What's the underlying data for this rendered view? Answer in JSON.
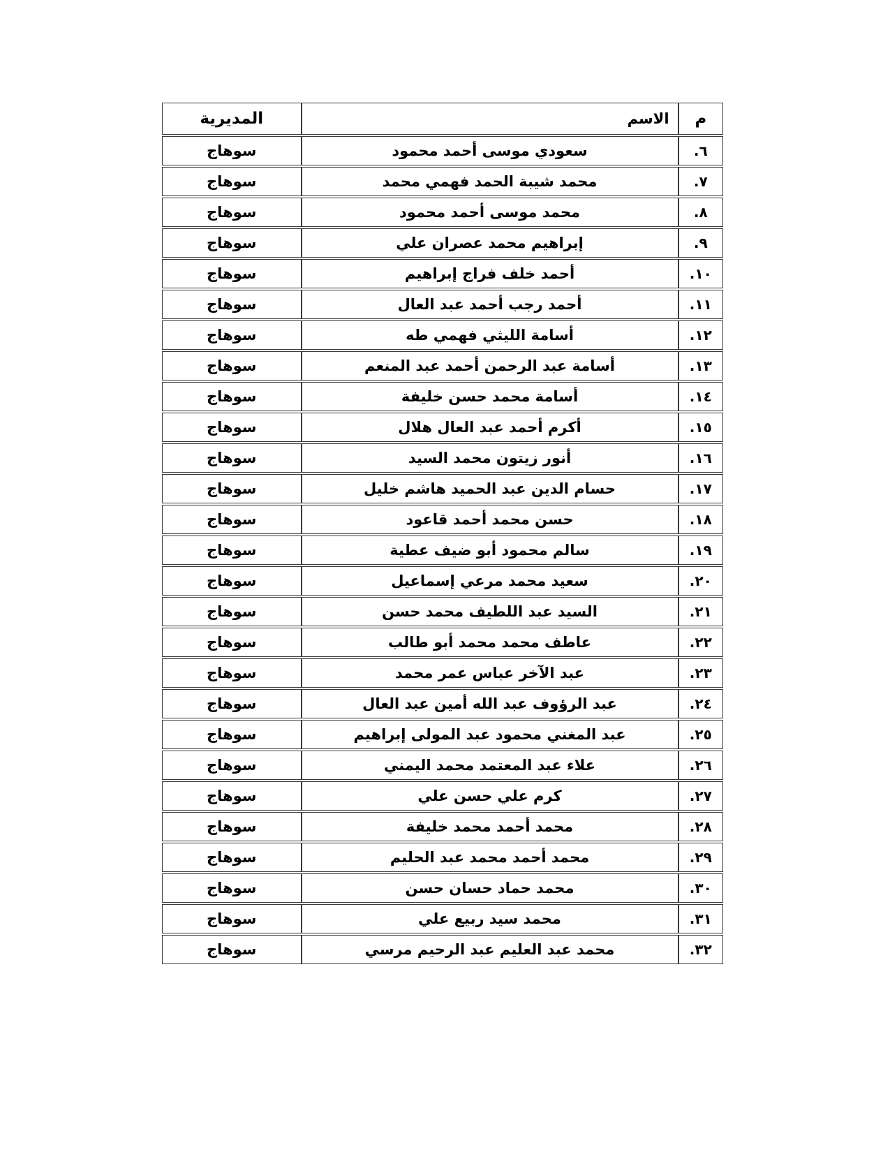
{
  "page": {
    "background": "#ffffff",
    "text_color": "#000000",
    "border_color": "#3a3a3a",
    "direction": "rtl"
  },
  "table": {
    "headers": {
      "number": "م",
      "name": "الاسم",
      "directorate": "المديرية"
    },
    "rows": [
      {
        "number": "٦.",
        "name": "سعودي موسى أحمد محمود",
        "directorate": "سوهاج"
      },
      {
        "number": "٧.",
        "name": "محمد شيبة الحمد فهمي محمد",
        "directorate": "سوهاج"
      },
      {
        "number": "٨.",
        "name": "محمد موسى أحمد محمود",
        "directorate": "سوهاج"
      },
      {
        "number": "٩.",
        "name": "إبراهيم محمد عصران علي",
        "directorate": "سوهاج"
      },
      {
        "number": "١٠.",
        "name": "أحمد خلف فراج إبراهيم",
        "directorate": "سوهاج"
      },
      {
        "number": "١١.",
        "name": "أحمد رجب أحمد عبد العال",
        "directorate": "سوهاج"
      },
      {
        "number": "١٢.",
        "name": "أسامة الليثي فهمي طه",
        "directorate": "سوهاج"
      },
      {
        "number": "١٣.",
        "name": "أسامة عبد الرحمن أحمد عبد المنعم",
        "directorate": "سوهاج"
      },
      {
        "number": "١٤.",
        "name": "أسامة محمد حسن خليفة",
        "directorate": "سوهاج"
      },
      {
        "number": "١٥.",
        "name": "أكرم أحمد عبد العال هلال",
        "directorate": "سوهاج"
      },
      {
        "number": "١٦.",
        "name": "أنور زيتون محمد السيد",
        "directorate": "سوهاج"
      },
      {
        "number": "١٧.",
        "name": "حسام الدين عبد الحميد هاشم خليل",
        "directorate": "سوهاج"
      },
      {
        "number": "١٨.",
        "name": "حسن محمد أحمد قاعود",
        "directorate": "سوهاج"
      },
      {
        "number": "١٩.",
        "name": "سالم محمود أبو ضيف عطية",
        "directorate": "سوهاج"
      },
      {
        "number": "٢٠.",
        "name": "سعيد محمد مرعي إسماعيل",
        "directorate": "سوهاج"
      },
      {
        "number": "٢١.",
        "name": "السيد عبد اللطيف محمد حسن",
        "directorate": "سوهاج"
      },
      {
        "number": "٢٢.",
        "name": "عاطف محمد محمد أبو طالب",
        "directorate": "سوهاج"
      },
      {
        "number": "٢٣.",
        "name": "عبد الآخر عباس عمر محمد",
        "directorate": "سوهاج"
      },
      {
        "number": "٢٤.",
        "name": "عبد الرؤوف عبد الله أمين عبد العال",
        "directorate": "سوهاج"
      },
      {
        "number": "٢٥.",
        "name": "عبد المغني محمود عبد المولى إبراهيم",
        "directorate": "سوهاج"
      },
      {
        "number": "٢٦.",
        "name": "علاء عبد المعتمد محمد اليمني",
        "directorate": "سوهاج"
      },
      {
        "number": "٢٧.",
        "name": "كرم علي حسن علي",
        "directorate": "سوهاج"
      },
      {
        "number": "٢٨.",
        "name": "محمد أحمد محمد خليفة",
        "directorate": "سوهاج"
      },
      {
        "number": "٢٩.",
        "name": "محمد أحمد محمد عبد الحليم",
        "directorate": "سوهاج"
      },
      {
        "number": "٣٠.",
        "name": "محمد حماد حسان حسن",
        "directorate": "سوهاج"
      },
      {
        "number": "٣١.",
        "name": "محمد سيد ربيع علي",
        "directorate": "سوهاج"
      },
      {
        "number": "٣٢.",
        "name": "محمد عبد العليم عبد الرحيم مرسي",
        "directorate": "سوهاج"
      }
    ]
  }
}
